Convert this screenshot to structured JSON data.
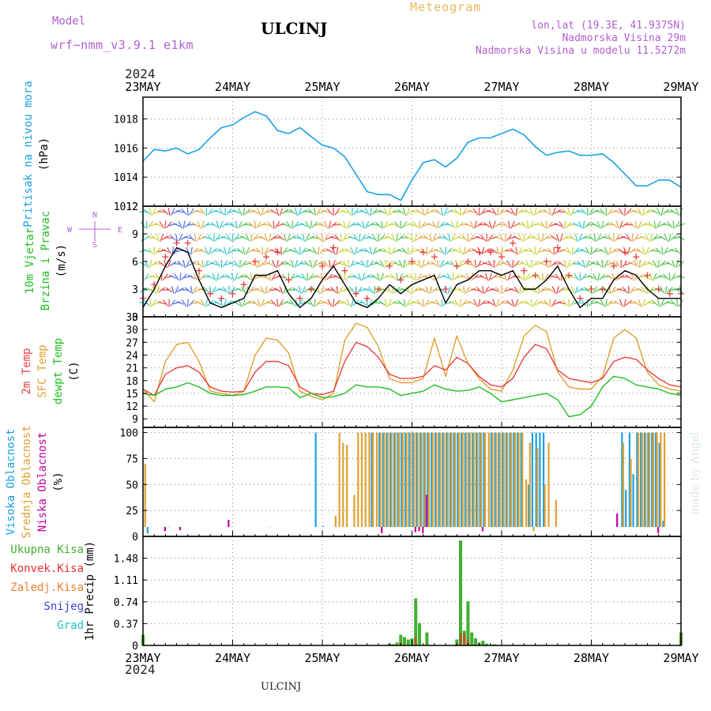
{
  "header": {
    "model_label": "Model",
    "model_name": "wrf−nmm_v3.9.1  e1km",
    "title": "ULCINJ",
    "product": "Meteogram",
    "lonlat": "lon,lat (19.3E, 41.9375N)",
    "altitude": "Nadmorska Visina 29m",
    "model_altitude": "Nadmorska Visina u modelu 11.5272m",
    "year_top": "2024",
    "year_bottom": "2024",
    "footer": "ULCINJ",
    "credit": "made by Angel"
  },
  "colors": {
    "pressure": "#1aa0e6",
    "wind_speed": "#000000",
    "gust": "#e83030",
    "t2m": "#e84040",
    "tsfc": "#e0a030",
    "dewpt": "#20c020",
    "cloud_high": "#1aa0e6",
    "cloud_mid": "#e0a030",
    "cloud_low": "#c000a0",
    "precip_total": "#40b030",
    "precip_conv": "#e83030",
    "precip_frz": "#f08030",
    "snow": "#4040e0",
    "hail": "#20c0c0",
    "grid": "#888888"
  },
  "chart_data": [
    {
      "type": "line",
      "panel": "pressure",
      "ylabel_lines": [
        "Pritisak na nivou mora",
        "(hPa)"
      ],
      "ylim": [
        1012,
        1019.5
      ],
      "yticks": [
        "1012",
        "1014",
        "1016",
        "1018"
      ],
      "x_unit": "hours since 23MAY 00UTC",
      "xticks": [
        "23MAY",
        "24MAY",
        "25MAY",
        "26MAY",
        "27MAY",
        "28MAY",
        "29MAY"
      ],
      "series": [
        {
          "name": "Pritisak na nivou mora",
          "x": [
            0,
            3,
            6,
            9,
            12,
            15,
            18,
            21,
            24,
            27,
            30,
            33,
            36,
            39,
            42,
            45,
            48,
            51,
            54,
            57,
            60,
            63,
            66,
            69,
            72,
            75,
            78,
            81,
            84,
            87,
            90,
            93,
            96,
            99,
            102,
            105,
            108,
            111,
            114,
            117,
            120,
            123,
            126,
            129,
            132,
            135,
            138,
            141,
            144
          ],
          "values": [
            1015.1,
            1015.9,
            1015.8,
            1016.0,
            1015.6,
            1015.9,
            1016.7,
            1017.4,
            1017.6,
            1018.1,
            1018.5,
            1018.2,
            1017.2,
            1017.0,
            1017.4,
            1016.8,
            1016.2,
            1016.0,
            1015.4,
            1014.2,
            1013.0,
            1012.8,
            1012.8,
            1012.4,
            1013.8,
            1015.0,
            1015.2,
            1014.7,
            1015.3,
            1016.4,
            1016.7,
            1016.7,
            1017.0,
            1017.3,
            1016.9,
            1016.1,
            1015.5,
            1015.7,
            1015.8,
            1015.5,
            1015.5,
            1015.6,
            1015.0,
            1014.2,
            1013.4,
            1013.4,
            1013.8,
            1013.8,
            1013.3
          ]
        }
      ]
    },
    {
      "type": "line",
      "panel": "wind",
      "ylabel_lines": [
        "10m Vjetar",
        "Brzina i Pravac",
        "(m/s)"
      ],
      "compass": [
        "N",
        "W",
        "E",
        "S"
      ],
      "ylim": [
        0,
        12
      ],
      "yticks": [
        "0",
        "3",
        "6",
        "9",
        "12"
      ],
      "series": [
        {
          "name": "Brzina",
          "x": [
            0,
            3,
            6,
            9,
            12,
            15,
            18,
            21,
            24,
            27,
            30,
            33,
            36,
            39,
            42,
            45,
            48,
            51,
            54,
            57,
            60,
            63,
            66,
            69,
            72,
            75,
            78,
            81,
            84,
            87,
            90,
            93,
            96,
            99,
            102,
            105,
            108,
            111,
            114,
            117,
            120,
            123,
            126,
            129,
            132,
            135,
            138,
            141,
            144
          ],
          "values": [
            1.0,
            3.0,
            5.5,
            7.5,
            7.0,
            4.0,
            1.5,
            1.0,
            1.5,
            2.0,
            4.5,
            4.5,
            5.0,
            2.5,
            1.0,
            2.0,
            4.0,
            5.5,
            3.5,
            1.5,
            1.0,
            2.0,
            3.5,
            2.5,
            3.5,
            4.0,
            4.5,
            1.5,
            3.5,
            4.0,
            5.0,
            5.0,
            4.5,
            5.0,
            3.0,
            3.0,
            4.0,
            5.5,
            3.0,
            1.0,
            2.0,
            2.0,
            4.0,
            5.0,
            4.5,
            3.0,
            2.0,
            2.0,
            2.0
          ]
        },
        {
          "name": "Udari",
          "x": [
            0,
            3,
            6,
            9,
            12,
            15,
            18,
            21,
            24,
            27,
            30,
            33,
            36,
            39,
            42,
            45,
            48,
            51,
            54,
            57,
            60,
            63,
            66,
            69,
            72,
            75,
            78,
            81,
            84,
            87,
            90,
            93,
            96,
            99,
            102,
            105,
            108,
            111,
            114,
            117,
            120,
            123,
            126,
            129,
            132,
            135,
            138,
            141,
            144
          ],
          "values": [
            2.0,
            3.5,
            6.5,
            8.0,
            8.0,
            5.0,
            2.5,
            2.0,
            2.5,
            3.5,
            6.0,
            6.5,
            7.0,
            4.0,
            2.0,
            3.0,
            5.5,
            7.5,
            5.0,
            2.5,
            2.0,
            3.0,
            5.5,
            4.0,
            6.0,
            7.0,
            6.5,
            3.0,
            5.5,
            6.0,
            7.0,
            7.0,
            6.5,
            8.0,
            5.0,
            4.5,
            6.0,
            7.5,
            4.5,
            2.0,
            3.0,
            3.0,
            5.5,
            7.0,
            6.5,
            4.5,
            3.0,
            2.5,
            2.5
          ]
        }
      ]
    },
    {
      "type": "line",
      "panel": "temperature",
      "ylabel_lines": [
        "2m Temp",
        "SFC Temp",
        "dewpt Temp",
        "(C)"
      ],
      "ylim": [
        7,
        33
      ],
      "yticks": [
        "9",
        "12",
        "15",
        "18",
        "21",
        "24",
        "27",
        "30",
        "33"
      ],
      "series": [
        {
          "name": "2m Temp",
          "x": [
            0,
            3,
            6,
            9,
            12,
            15,
            18,
            21,
            24,
            27,
            30,
            33,
            36,
            39,
            42,
            45,
            48,
            51,
            54,
            57,
            60,
            63,
            66,
            69,
            72,
            75,
            78,
            81,
            84,
            87,
            90,
            93,
            96,
            99,
            102,
            105,
            108,
            111,
            114,
            117,
            120,
            123,
            126,
            129,
            132,
            135,
            138,
            141,
            144
          ],
          "values": [
            16,
            14.5,
            19.5,
            21.0,
            21.5,
            20.0,
            16.5,
            15.5,
            15.3,
            15.5,
            20.0,
            22.5,
            22.5,
            21.5,
            16.5,
            15.0,
            14.7,
            15.5,
            22.5,
            27.0,
            26.0,
            23.5,
            19.5,
            18.5,
            18.5,
            19.0,
            21.5,
            20.5,
            23.5,
            22.0,
            19.0,
            17.0,
            16.5,
            18.5,
            23.5,
            26.5,
            25.5,
            20.5,
            18.5,
            18.0,
            17.5,
            18.5,
            22.5,
            23.5,
            23.0,
            20.5,
            18.5,
            17.0,
            16.5
          ]
        },
        {
          "name": "SFC Temp",
          "x": [
            0,
            3,
            6,
            9,
            12,
            15,
            18,
            21,
            24,
            27,
            30,
            33,
            36,
            39,
            42,
            45,
            48,
            51,
            54,
            57,
            60,
            63,
            66,
            69,
            72,
            75,
            78,
            81,
            84,
            87,
            90,
            93,
            96,
            99,
            102,
            105,
            108,
            111,
            114,
            117,
            120,
            123,
            126,
            129,
            132,
            135,
            138,
            141,
            144
          ],
          "values": [
            16,
            13.0,
            22.5,
            26.5,
            27.0,
            22.5,
            15.5,
            15.0,
            14.5,
            15.5,
            24.0,
            28.0,
            27.5,
            24.5,
            15.5,
            14.3,
            13.5,
            15.0,
            27.5,
            31.5,
            30.5,
            26.0,
            18.5,
            17.5,
            17.5,
            18.5,
            28.0,
            19.0,
            28.5,
            22.0,
            18.5,
            16.0,
            15.5,
            20.5,
            28.5,
            31.0,
            29.5,
            20.0,
            16.5,
            16.0,
            16.0,
            19.0,
            28.0,
            30.0,
            28.0,
            20.0,
            17.0,
            16.0,
            15.5
          ]
        },
        {
          "name": "dewpt Temp",
          "x": [
            0,
            3,
            6,
            9,
            12,
            15,
            18,
            21,
            24,
            27,
            30,
            33,
            36,
            39,
            42,
            45,
            48,
            51,
            54,
            57,
            60,
            63,
            66,
            69,
            72,
            75,
            78,
            81,
            84,
            87,
            90,
            93,
            96,
            99,
            102,
            105,
            108,
            111,
            114,
            117,
            120,
            123,
            126,
            129,
            132,
            135,
            138,
            141,
            144
          ],
          "values": [
            15,
            14.5,
            16.0,
            16.5,
            17.5,
            16.5,
            15.0,
            14.5,
            14.5,
            14.7,
            15.5,
            16.5,
            16.5,
            16.3,
            14.0,
            15.0,
            14.0,
            14.2,
            15.0,
            17.0,
            16.5,
            16.5,
            16.0,
            14.5,
            15.0,
            15.5,
            17.0,
            16.0,
            15.5,
            15.7,
            16.5,
            15.0,
            13.0,
            13.5,
            14.0,
            14.5,
            15.0,
            13.5,
            9.5,
            10.0,
            12.0,
            16.5,
            19.0,
            18.5,
            17.0,
            16.5,
            16.0,
            15.0,
            14.5
          ]
        }
      ]
    },
    {
      "type": "bar",
      "panel": "clouds",
      "ylabel_lines": [
        "Visoka Oblacnost",
        "Srednja Oblacnost",
        "Niska Oblacnost",
        "(%)"
      ],
      "ylim": [
        0,
        105
      ],
      "yticks": [
        "0",
        "25",
        "50",
        "75",
        "100"
      ],
      "series": [
        {
          "name": "Visoka Oblacnost",
          "x": [
            1,
            46,
            48,
            61,
            63,
            64,
            65,
            66,
            67,
            68,
            69,
            70,
            71,
            72,
            73,
            74,
            75,
            76,
            77,
            78,
            79,
            80,
            81,
            82,
            83,
            84,
            85,
            86,
            87,
            88,
            89,
            90,
            91,
            93,
            94,
            95,
            96,
            97,
            98,
            99,
            100,
            101,
            103,
            104,
            105,
            106,
            107,
            128,
            129,
            130,
            131,
            132,
            133,
            134,
            135,
            136,
            137,
            138,
            139
          ],
          "values": [
            3,
            100,
            10,
            100,
            100,
            100,
            100,
            100,
            100,
            100,
            100,
            100,
            100,
            100,
            100,
            100,
            100,
            100,
            100,
            100,
            100,
            100,
            100,
            100,
            100,
            100,
            100,
            100,
            100,
            100,
            100,
            100,
            100,
            100,
            100,
            100,
            100,
            100,
            100,
            100,
            100,
            100,
            50,
            100,
            100,
            100,
            100,
            100,
            45,
            100,
            60,
            100,
            100,
            100,
            100,
            100,
            100,
            90,
            15
          ]
        },
        {
          "name": "Srednja Oblacnost",
          "x": [
            0,
            51,
            52,
            53,
            54,
            56,
            57,
            58,
            59,
            60,
            61,
            62,
            63,
            64,
            65,
            66,
            67,
            68,
            69,
            70,
            71,
            72,
            73,
            74,
            75,
            76,
            77,
            78,
            79,
            80,
            81,
            82,
            83,
            84,
            85,
            86,
            87,
            88,
            89,
            90,
            91,
            92,
            93,
            94,
            95,
            96,
            97,
            98,
            99,
            100,
            101,
            102,
            103,
            104,
            105,
            107,
            108,
            110,
            128,
            130,
            132,
            133,
            134,
            135,
            136,
            137,
            138,
            139
          ],
          "values": [
            70,
            20,
            100,
            90,
            88,
            40,
            100,
            100,
            100,
            100,
            100,
            100,
            100,
            100,
            100,
            100,
            100,
            100,
            100,
            100,
            100,
            100,
            100,
            100,
            100,
            100,
            100,
            100,
            100,
            100,
            100,
            100,
            100,
            100,
            100,
            100,
            100,
            100,
            100,
            100,
            100,
            100,
            100,
            100,
            100,
            100,
            100,
            100,
            100,
            100,
            100,
            55,
            90,
            5,
            85,
            50,
            90,
            35,
            90,
            75,
            100,
            100,
            100,
            100,
            100,
            100,
            100,
            100
          ]
        },
        {
          "name": "Niska Oblacnost",
          "x": [
            5,
            6,
            9,
            22,
            33,
            63,
            72,
            73,
            74,
            75,
            90,
            126,
            137
          ],
          "values": [
            5,
            9,
            6,
            16,
            9,
            3,
            4,
            5,
            3,
            40,
            5,
            22,
            3
          ]
        }
      ]
    },
    {
      "type": "bar",
      "panel": "precip",
      "ylabel_lines": [
        "1hr Precip (mm)"
      ],
      "legend": [
        "Ukupna  Kisa",
        "Konvek.Kisa",
        "Zaledj.Kisa",
        "Snijeg",
        "Grad"
      ],
      "ylim": [
        0,
        1.85
      ],
      "yticks": [
        "0",
        "0.37",
        "0.74",
        "1.11",
        "1.48"
      ],
      "series": [
        {
          "name": "Ukupna Kisa",
          "x": [
            0,
            66,
            67,
            68,
            69,
            70,
            71,
            72,
            73,
            74,
            76,
            84,
            85,
            86,
            87,
            88,
            89,
            90,
            91,
            92,
            94,
            144
          ],
          "values": [
            0.18,
            0.03,
            0.02,
            0.05,
            0.18,
            0.14,
            0.1,
            0.12,
            0.8,
            0.38,
            0.22,
            0.1,
            1.78,
            0.25,
            0.75,
            0.22,
            0.12,
            0.05,
            0.08,
            0.03,
            0.02,
            0.22
          ]
        },
        {
          "name": "Konvek.Kisa",
          "x": [
            0,
            69,
            73,
            85,
            86,
            87,
            144
          ],
          "values": [
            0.02,
            0.05,
            0.15,
            0.2,
            0.2,
            0.1,
            0.2
          ]
        }
      ]
    }
  ]
}
